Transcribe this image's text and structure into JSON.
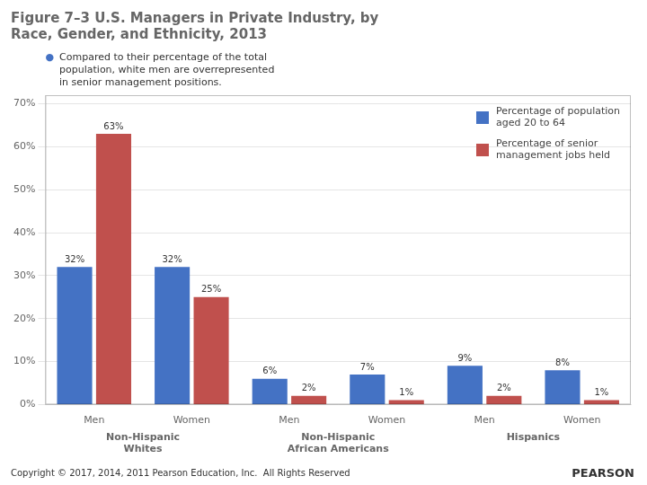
{
  "chart_data": {
    "type": "bar",
    "title": "Figure 7–3 U.S. Managers in Private Industry, by\nRace, Gender, and Ethnicity, 2013",
    "categories": [
      "Men",
      "Women",
      "Men",
      "Women",
      "Men",
      "Women"
    ],
    "groups": [
      "Non-Hispanic\nWhites",
      "Non-Hispanic\nAfrican Americans",
      "Hispanics"
    ],
    "series": [
      {
        "name": "Percentage of population\naged 20 to 64",
        "color": "#4472C4",
        "values": [
          32,
          32,
          6,
          7,
          9,
          8
        ],
        "value_labels": [
          "32%",
          "32%",
          "6%",
          "7%",
          "9%",
          "8%"
        ]
      },
      {
        "name": "Percentage of senior\nmanagement jobs held",
        "color": "#C0504D",
        "values": [
          63,
          25,
          2,
          1,
          2,
          1
        ],
        "value_labels": [
          "63%",
          "25%",
          "2%",
          "1%",
          "2%",
          "1%"
        ]
      }
    ],
    "ylim": [
      0,
      72
    ],
    "yticks": [
      {
        "value": 0,
        "label": "0%"
      },
      {
        "value": 10,
        "label": "10%"
      },
      {
        "value": 20,
        "label": "20%"
      },
      {
        "value": 30,
        "label": "30%"
      },
      {
        "value": 40,
        "label": "40%"
      },
      {
        "value": 50,
        "label": "50%"
      },
      {
        "value": 60,
        "label": "60%"
      },
      {
        "value": 70,
        "label": "70%"
      }
    ],
    "grid": true,
    "legend": "upper right",
    "data_labels": true,
    "annotations": [
      "●",
      "Compared to their percentage of the total\npopulation, white men are overrepresented\nin senior management positions.",
      "Copyright © 2017, 2014, 2011 Pearson Education, Inc.  All Rights Reserved",
      "PEARSON"
    ]
  }
}
